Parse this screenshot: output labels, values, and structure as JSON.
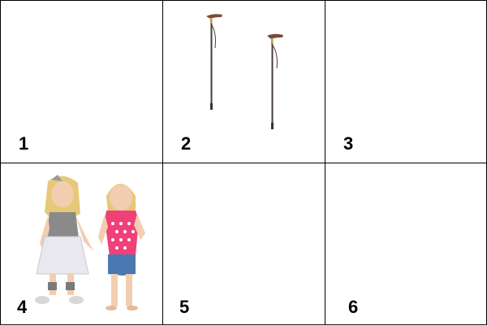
{
  "cells": [
    {
      "label": "1",
      "image": "empty"
    },
    {
      "label": "2",
      "image": "walking-canes"
    },
    {
      "label": "3",
      "image": "empty"
    },
    {
      "label": "4",
      "image": "two-girls"
    },
    {
      "label": "5",
      "image": "empty"
    },
    {
      "label": "6",
      "image": "empty"
    }
  ],
  "colors": {
    "border": "#000000",
    "cane": "#4a3c3a",
    "cane_handle": "#7a4a3a",
    "girl_pink_top": "#f0407a",
    "girl_gray_top": "#8a8a8a",
    "denim": "#4a78b0",
    "hair": "#e7c878",
    "skin": "#f3cdb0"
  }
}
